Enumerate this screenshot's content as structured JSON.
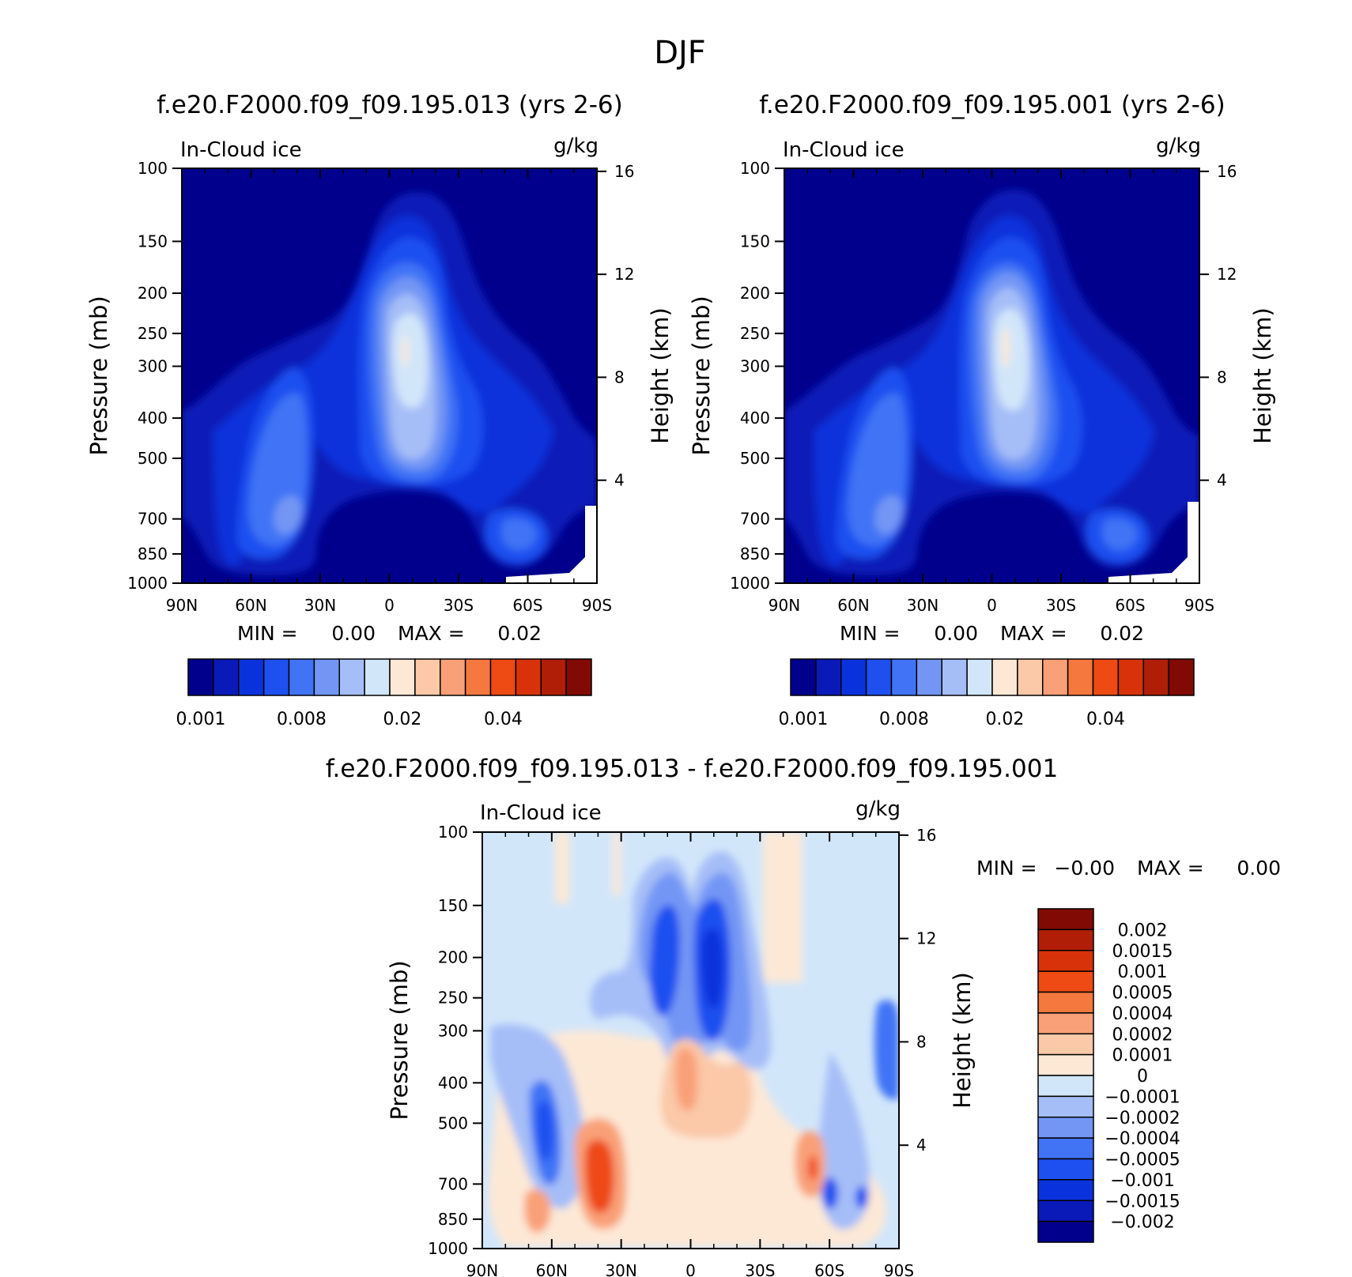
{
  "figure": {
    "title": "DJF"
  },
  "chart_data": [
    {
      "type": "heatmap",
      "title": "f.e20.F2000.f09_f09.195.013 (yrs 2-6)",
      "variable": "In-Cloud ice",
      "units": "g/kg",
      "xlabel": "",
      "ylabel": "Pressure (mb)",
      "ylabel_right": "Height (km)",
      "x_ticks": [
        "90N",
        "60N",
        "30N",
        "0",
        "30S",
        "60S",
        "90S"
      ],
      "y_ticks": [
        "100",
        "150",
        "200",
        "250",
        "300",
        "400",
        "500",
        "700",
        "850",
        "1000"
      ],
      "y2_ticks": [
        "16",
        "12",
        "8",
        "4"
      ],
      "stats": {
        "min_label": "MIN =",
        "min_value": "0.00",
        "max_label": "MAX =",
        "max_value": "0.02"
      },
      "colorbar_orientation": "horizontal",
      "colorbar_labels": [
        "0.001",
        "0.008",
        "0.02",
        "0.04"
      ],
      "colorbar_colors": [
        "#00008c",
        "#0a1ab8",
        "#0a32dc",
        "#1e50f0",
        "#4173f5",
        "#7396f5",
        "#a5bef8",
        "#d2e6fa",
        "#fde8d6",
        "#fbc8a8",
        "#f9a078",
        "#f5783f",
        "#ee4a14",
        "#d8320a",
        "#b01e08",
        "#820a04"
      ],
      "features": [
        {
          "lat": 0.5,
          "p": 330,
          "level": 8,
          "note": "tropical upper max"
        },
        {
          "lat": 45,
          "p": 700,
          "level": 5
        },
        {
          "lat": -57,
          "p": 800,
          "level": 5
        }
      ]
    },
    {
      "type": "heatmap",
      "title": "f.e20.F2000.f09_f09.195.001 (yrs 2-6)",
      "variable": "In-Cloud ice",
      "units": "g/kg",
      "xlabel": "",
      "ylabel": "Pressure (mb)",
      "ylabel_right": "Height (km)",
      "x_ticks": [
        "90N",
        "60N",
        "30N",
        "0",
        "30S",
        "60S",
        "90S"
      ],
      "y_ticks": [
        "100",
        "150",
        "200",
        "250",
        "300",
        "400",
        "500",
        "700",
        "850",
        "1000"
      ],
      "y2_ticks": [
        "16",
        "12",
        "8",
        "4"
      ],
      "stats": {
        "min_label": "MIN =",
        "min_value": "0.00",
        "max_label": "MAX =",
        "max_value": "0.02"
      },
      "colorbar_orientation": "horizontal",
      "colorbar_labels": [
        "0.001",
        "0.008",
        "0.02",
        "0.04"
      ],
      "colorbar_colors": [
        "#00008c",
        "#0a1ab8",
        "#0a32dc",
        "#1e50f0",
        "#4173f5",
        "#7396f5",
        "#a5bef8",
        "#d2e6fa",
        "#fde8d6",
        "#fbc8a8",
        "#f9a078",
        "#f5783f",
        "#ee4a14",
        "#d8320a",
        "#b01e08",
        "#820a04"
      ],
      "features": [
        {
          "lat": -5,
          "p": 300,
          "level": 8,
          "note": "tropical upper max"
        },
        {
          "lat": 48,
          "p": 700,
          "level": 5
        },
        {
          "lat": -57,
          "p": 800,
          "level": 5
        }
      ]
    },
    {
      "type": "heatmap",
      "title": "f.e20.F2000.f09_f09.195.013 - f.e20.F2000.f09_f09.195.001",
      "variable": "In-Cloud ice",
      "units": "g/kg",
      "xlabel": "",
      "ylabel": "Pressure (mb)",
      "ylabel_right": "Height (km)",
      "x_ticks": [
        "90N",
        "60N",
        "30N",
        "0",
        "30S",
        "60S",
        "90S"
      ],
      "y_ticks": [
        "100",
        "150",
        "200",
        "250",
        "300",
        "400",
        "500",
        "700",
        "850",
        "1000"
      ],
      "y2_ticks": [
        "16",
        "12",
        "8",
        "4"
      ],
      "stats": {
        "min_label": "MIN =",
        "min_value": "-0.00",
        "max_label": "MAX =",
        "max_value": "0.00"
      },
      "colorbar_orientation": "vertical",
      "colorbar_labels": [
        "0.002",
        "0.0015",
        "0.001",
        "0.0005",
        "0.0004",
        "0.0002",
        "0.0001",
        "0",
        "-0.0001",
        "-0.0002",
        "-0.0004",
        "-0.0005",
        "-0.001",
        "-0.0015",
        "-0.002"
      ],
      "colorbar_colors": [
        "#820a04",
        "#b01e08",
        "#d8320a",
        "#ee4a14",
        "#f5783f",
        "#f9a078",
        "#fbc8a8",
        "#fde8d6",
        "#d2e6fa",
        "#a5bef8",
        "#7396f5",
        "#4173f5",
        "#1e50f0",
        "#0a32dc",
        "#0a1ab8",
        "#00008c"
      ],
      "features": [
        {
          "lat": -10,
          "p": 270,
          "level": -0.001,
          "note": "negative core"
        },
        {
          "lat": 10,
          "p": 220,
          "level": -0.001
        },
        {
          "lat": 58,
          "p": 600,
          "level": -0.0005
        },
        {
          "lat": 38,
          "p": 700,
          "level": 0.001
        },
        {
          "lat": -52,
          "p": 700,
          "level": 0.001
        }
      ]
    }
  ]
}
